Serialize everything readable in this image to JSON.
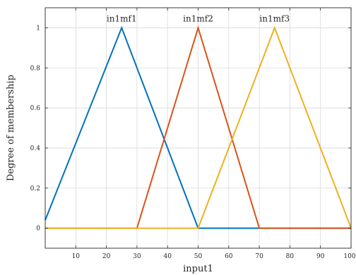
{
  "chart_data": {
    "type": "line",
    "xlabel": "input1",
    "ylabel": "Degree of membership",
    "xlim": [
      0,
      100
    ],
    "ylim": [
      -0.1,
      1.1
    ],
    "x_ticks": [
      10,
      20,
      30,
      40,
      50,
      60,
      70,
      80,
      90,
      100
    ],
    "y_ticks": [
      0,
      0.2,
      0.4,
      0.6,
      0.8,
      1
    ],
    "x_tick_labels": [
      "10",
      "20",
      "30",
      "40",
      "50",
      "60",
      "70",
      "80",
      "90",
      "100"
    ],
    "y_tick_labels": [
      "0",
      "0.2",
      "0.4",
      "0.6",
      "0.8",
      "1"
    ],
    "grid": true,
    "series": [
      {
        "name": "in1mf1",
        "color": "#0072BD",
        "x": [
          0,
          25,
          50,
          100
        ],
        "y": [
          0.04,
          1,
          0,
          0
        ]
      },
      {
        "name": "in1mf2",
        "color": "#D95319",
        "x": [
          0,
          30,
          50,
          70,
          100
        ],
        "y": [
          0,
          0,
          1,
          0,
          0
        ]
      },
      {
        "name": "in1mf3",
        "color": "#EDB120",
        "x": [
          0,
          50,
          75,
          100
        ],
        "y": [
          0,
          0,
          1,
          0
        ]
      }
    ]
  }
}
